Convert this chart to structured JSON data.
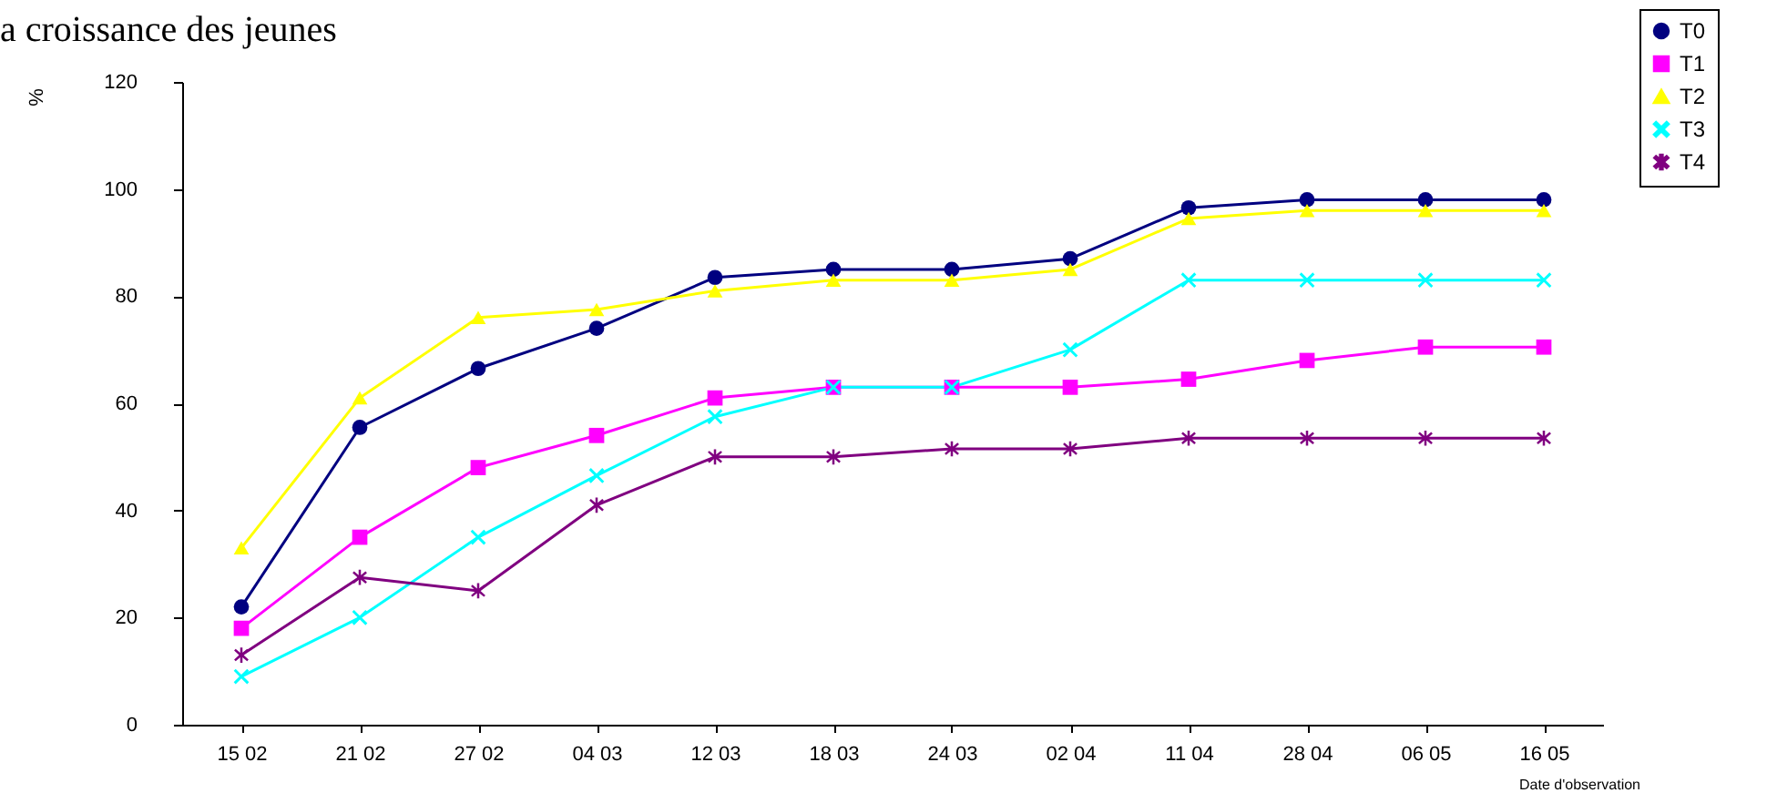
{
  "chart_data": {
    "type": "line",
    "title": "a croissance des jeunes",
    "ylabel": "%",
    "xlabel": "Date d'observation",
    "categories": [
      "15 02",
      "21 02",
      "27 02",
      "04 03",
      "12 03",
      "18 03",
      "24 03",
      "02 04",
      "11 04",
      "28 04",
      "06 05",
      "16 05"
    ],
    "ylim": [
      0,
      120
    ],
    "yticks": [
      0,
      20,
      40,
      60,
      80,
      100,
      120
    ],
    "legend": "top right",
    "series": [
      {
        "name": "T0",
        "color": "#000080",
        "marker": "circle",
        "values": [
          22,
          55.5,
          66.5,
          74,
          83.5,
          85,
          85,
          87,
          96.5,
          98,
          98,
          98
        ]
      },
      {
        "name": "T1",
        "color": "#ff00ff",
        "marker": "square",
        "values": [
          18,
          35,
          48,
          54,
          61,
          63,
          63,
          63,
          64.5,
          68,
          70.5,
          70.5
        ]
      },
      {
        "name": "T2",
        "color": "#ffff00",
        "marker": "triangle",
        "values": [
          33,
          61,
          76,
          77.5,
          81,
          83,
          83,
          85,
          94.5,
          96,
          96,
          96
        ]
      },
      {
        "name": "T3",
        "color": "#00ffff",
        "marker": "cross",
        "values": [
          9,
          20,
          35,
          46.5,
          57.5,
          63,
          63,
          70,
          83,
          83,
          83,
          83
        ]
      },
      {
        "name": "T4",
        "color": "#800080",
        "marker": "star",
        "values": [
          13,
          27.5,
          25,
          41,
          50,
          50,
          51.5,
          51.5,
          53.5,
          53.5,
          53.5,
          53.5
        ]
      }
    ]
  }
}
